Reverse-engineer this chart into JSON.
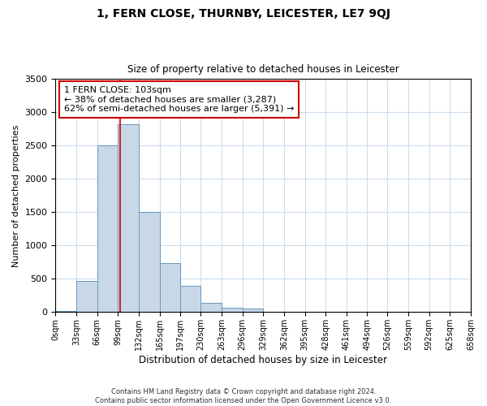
{
  "title": "1, FERN CLOSE, THURNBY, LEICESTER, LE7 9QJ",
  "subtitle": "Size of property relative to detached houses in Leicester",
  "xlabel": "Distribution of detached houses by size in Leicester",
  "ylabel": "Number of detached properties",
  "bin_edges": [
    0,
    33,
    66,
    99,
    132,
    165,
    197,
    230,
    263,
    296,
    329,
    362,
    395,
    428,
    461,
    494,
    526,
    559,
    592,
    625,
    658
  ],
  "bar_heights": [
    20,
    470,
    2500,
    2820,
    1510,
    740,
    390,
    145,
    70,
    55,
    0,
    0,
    0,
    0,
    0,
    0,
    0,
    0,
    0,
    0
  ],
  "bar_color": "#c8d8e8",
  "bar_edge_color": "#6699bb",
  "grid_color": "#ccddee",
  "property_size": 103,
  "marker_line_color": "#cc0000",
  "annotation_line1": "1 FERN CLOSE: 103sqm",
  "annotation_line2": "← 38% of detached houses are smaller (3,287)",
  "annotation_line3": "62% of semi-detached houses are larger (5,391) →",
  "annotation_box_edge_color": "#cc0000",
  "ylim": [
    0,
    3500
  ],
  "yticks": [
    0,
    500,
    1000,
    1500,
    2000,
    2500,
    3000,
    3500
  ],
  "footnote_line1": "Contains HM Land Registry data © Crown copyright and database right 2024.",
  "footnote_line2": "Contains public sector information licensed under the Open Government Licence v3.0.",
  "tick_labels": [
    "0sqm",
    "33sqm",
    "66sqm",
    "99sqm",
    "132sqm",
    "165sqm",
    "197sqm",
    "230sqm",
    "263sqm",
    "296sqm",
    "329sqm",
    "362sqm",
    "395sqm",
    "428sqm",
    "461sqm",
    "494sqm",
    "526sqm",
    "559sqm",
    "592sqm",
    "625sqm",
    "658sqm"
  ]
}
